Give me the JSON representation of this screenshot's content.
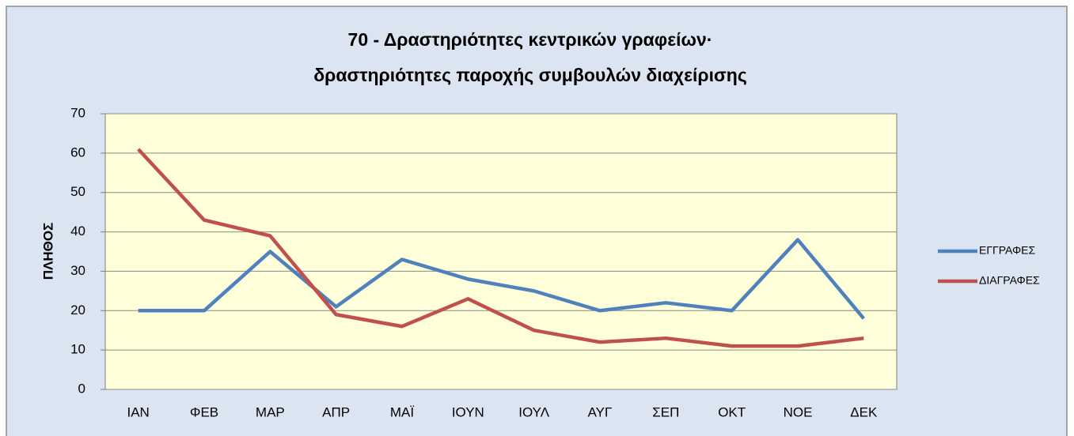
{
  "chart_data": {
    "type": "line",
    "title": [
      "70 - Δραστηριότητες κεντρικών γραφείων·",
      "δραστηριότητες παροχής συμβουλών διαχείρισης"
    ],
    "y_label": "ΠΛΗΘΟΣ",
    "categories": [
      "ΙΑΝ",
      "ΦΕΒ",
      "ΜΑΡ",
      "ΑΠΡ",
      "ΜΑΪ",
      "ΙΟΥΝ",
      "ΙΟΥΛ",
      "ΑΥΓ",
      "ΣΕΠ",
      "ΟΚΤ",
      "ΝΟΕ",
      "ΔΕΚ"
    ],
    "series": [
      {
        "name": "ΕΓΓΡΑΦΕΣ",
        "color": "#4f81bd",
        "values": [
          20,
          20,
          35,
          21,
          33,
          28,
          25,
          20,
          22,
          20,
          38,
          18
        ]
      },
      {
        "name": "ΔΙΑΓΡΑΦΕΣ",
        "color": "#c0504d",
        "values": [
          61,
          43,
          39,
          19,
          16,
          23,
          15,
          12,
          13,
          11,
          11,
          13
        ]
      }
    ],
    "ylim": [
      0,
      70
    ],
    "yticks": [
      0,
      10,
      20,
      30,
      40,
      50,
      60,
      70
    ],
    "grid": true,
    "legend": "right"
  }
}
